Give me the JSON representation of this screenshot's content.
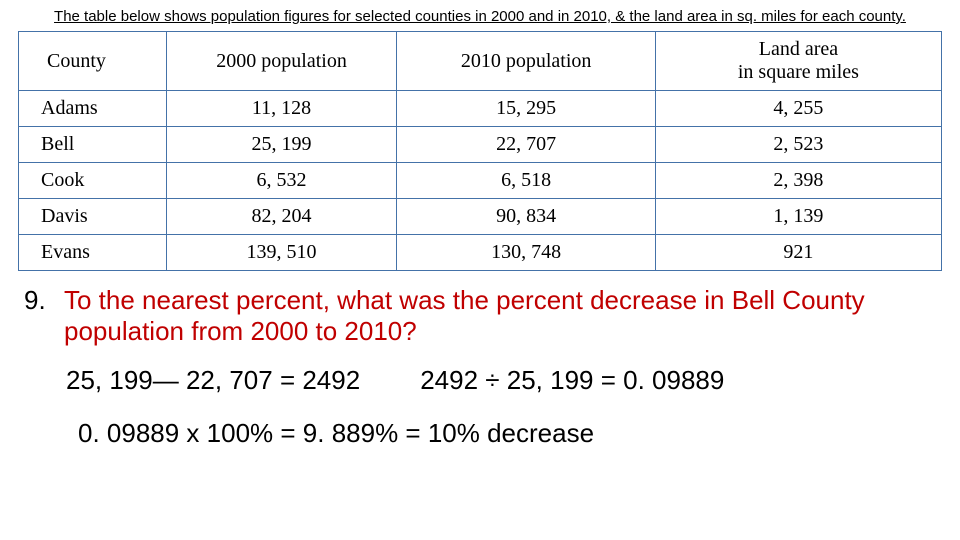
{
  "caption": "The table below shows population figures for selected counties in 2000 and in 2010, & the land area in sq. miles for each county.",
  "table": {
    "headers": {
      "county": "County",
      "pop2000": "2000 population",
      "pop2010": "2010 population",
      "land_l1": "Land area",
      "land_l2": "in square miles"
    },
    "rows": [
      {
        "county": "Adams",
        "pop2000": "11, 128",
        "pop2010": "15, 295",
        "land": "4, 255"
      },
      {
        "county": "Bell",
        "pop2000": "25, 199",
        "pop2010": "22, 707",
        "land": "2, 523"
      },
      {
        "county": "Cook",
        "pop2000": "6, 532",
        "pop2010": "6, 518",
        "land": "2, 398"
      },
      {
        "county": "Davis",
        "pop2000": "82, 204",
        "pop2010": "90, 834",
        "land": "1, 139"
      },
      {
        "county": "Evans",
        "pop2000": "139, 510",
        "pop2010": "130, 748",
        "land": "921"
      }
    ],
    "border_color": "#4472a8",
    "header_fontsize": 20,
    "cell_fontsize": 20
  },
  "question": {
    "number": "9.",
    "text": "To the nearest percent, what was the percent decrease in Bell County population from 2000 to 2010?",
    "color": "#c00000",
    "fontsize": 26
  },
  "work": {
    "step1a": "25, 199— 22, 707 = 2492",
    "step1b": "2492 ÷ 25, 199 = 0. 09889",
    "step2": "0. 09889 x 100% = 9. 889% = 10% decrease",
    "fontsize": 26
  }
}
